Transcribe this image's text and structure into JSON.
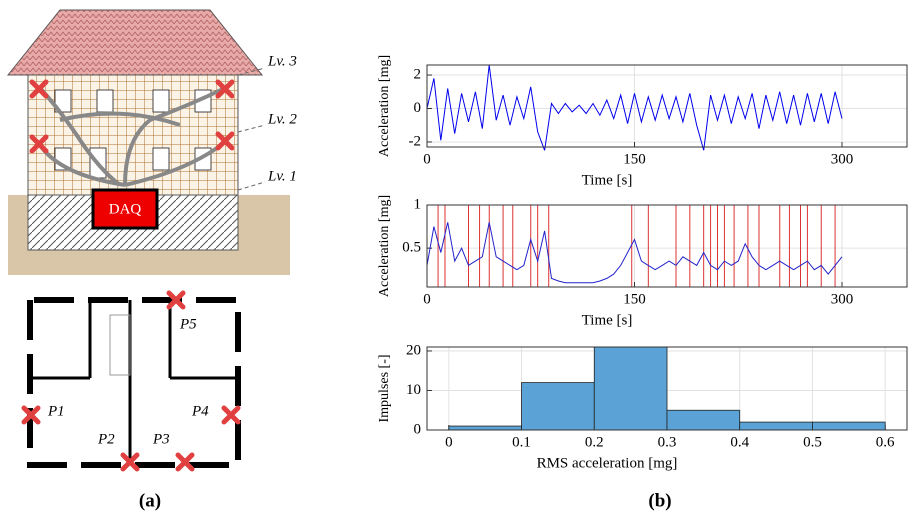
{
  "diagram": {
    "levels": [
      "Lv. 3",
      "Lv. 2",
      "Lv. 1"
    ],
    "daq": "DAQ",
    "points": [
      "P1",
      "P2",
      "P3",
      "P4",
      "P5"
    ],
    "panel_labels": [
      "(a)",
      "(b)"
    ]
  },
  "chart_data": [
    {
      "type": "line",
      "xlabel": "Time [s]",
      "ylabel": "Acceleration [mg]",
      "grid": true,
      "xlim": [
        0,
        347
      ],
      "xticks": [
        0,
        150,
        300
      ],
      "ylim": [
        -2.3,
        2.6
      ],
      "yticks": [
        -2,
        0,
        2
      ],
      "x": [
        0,
        5,
        10,
        15,
        20,
        25,
        30,
        35,
        40,
        45,
        50,
        55,
        60,
        65,
        70,
        75,
        80,
        85,
        90,
        95,
        100,
        105,
        110,
        115,
        120,
        125,
        130,
        135,
        140,
        145,
        150,
        155,
        160,
        165,
        170,
        175,
        180,
        185,
        190,
        195,
        200,
        205,
        210,
        215,
        220,
        225,
        230,
        235,
        240,
        245,
        250,
        255,
        260,
        265,
        270,
        275,
        280,
        285,
        290,
        295,
        300
      ],
      "series": [
        {
          "color": "#0000ee",
          "values": [
            0,
            1.8,
            -1.9,
            1.2,
            -1.5,
            0.9,
            -0.8,
            1.0,
            -1.2,
            2.6,
            -0.7,
            0.8,
            -1.0,
            0.7,
            -0.6,
            1.3,
            -1.4,
            -2.5,
            0.3,
            -0.3,
            0.3,
            -0.2,
            0.2,
            -0.3,
            0.3,
            -0.4,
            0.5,
            -0.6,
            0.8,
            -0.9,
            0.9,
            -0.8,
            0.7,
            -0.7,
            0.8,
            -0.6,
            0.7,
            -0.8,
            0.9,
            -1.0,
            -2.5,
            0.8,
            -0.7,
            0.8,
            -0.9,
            0.7,
            -0.6,
            0.9,
            -1.2,
            0.8,
            -0.7,
            1.0,
            -0.9,
            0.8,
            -1.0,
            0.9,
            -0.8,
            0.9,
            -0.9,
            1.0,
            -0.6
          ]
        }
      ]
    },
    {
      "type": "line",
      "xlabel": "Time [s]",
      "ylabel": "Acceleration [mg]",
      "grid": true,
      "xlim": [
        0,
        347
      ],
      "xticks": [
        0,
        150,
        300
      ],
      "ylim": [
        0.05,
        1
      ],
      "yticks": [
        0.5,
        1
      ],
      "x": [
        0,
        5,
        10,
        15,
        20,
        25,
        30,
        35,
        40,
        45,
        50,
        55,
        60,
        65,
        70,
        75,
        80,
        85,
        90,
        95,
        100,
        105,
        110,
        115,
        120,
        125,
        130,
        135,
        140,
        145,
        150,
        155,
        160,
        165,
        170,
        175,
        180,
        185,
        190,
        195,
        200,
        205,
        210,
        215,
        220,
        225,
        230,
        235,
        240,
        245,
        250,
        255,
        260,
        265,
        270,
        275,
        280,
        285,
        290,
        295,
        300
      ],
      "series": [
        {
          "color": "#2222cc",
          "values": [
            0.3,
            0.75,
            0.45,
            0.8,
            0.35,
            0.5,
            0.3,
            0.35,
            0.4,
            0.8,
            0.4,
            0.35,
            0.3,
            0.25,
            0.3,
            0.6,
            0.35,
            0.7,
            0.15,
            0.12,
            0.1,
            0.1,
            0.1,
            0.1,
            0.1,
            0.12,
            0.15,
            0.2,
            0.3,
            0.45,
            0.6,
            0.35,
            0.3,
            0.25,
            0.3,
            0.35,
            0.3,
            0.4,
            0.35,
            0.3,
            0.45,
            0.3,
            0.25,
            0.35,
            0.3,
            0.35,
            0.55,
            0.4,
            0.3,
            0.25,
            0.3,
            0.35,
            0.3,
            0.25,
            0.3,
            0.35,
            0.25,
            0.3,
            0.2,
            0.3,
            0.4
          ]
        }
      ],
      "impulse_color": "#dd3333",
      "impulse_times": [
        8,
        13,
        30,
        38,
        45,
        55,
        62,
        75,
        80,
        88,
        148,
        160,
        180,
        190,
        200,
        205,
        210,
        215,
        222,
        232,
        240,
        255,
        262,
        270,
        275,
        285,
        295
      ]
    },
    {
      "type": "histogram",
      "xlabel": "RMS acceleration [mg]",
      "ylabel": "Impulses [-]",
      "grid": true,
      "color": "#5ba3d6",
      "xlim": [
        -0.03,
        0.63
      ],
      "xticks": [
        0,
        0.1,
        0.2,
        0.3,
        0.4,
        0.5,
        0.6
      ],
      "ylim": [
        0,
        21
      ],
      "yticks": [
        0,
        10,
        20
      ],
      "bins": [
        0,
        0.1,
        0.2,
        0.3,
        0.4,
        0.5,
        0.6
      ],
      "counts": [
        1,
        12,
        21,
        5,
        2,
        2
      ]
    }
  ]
}
